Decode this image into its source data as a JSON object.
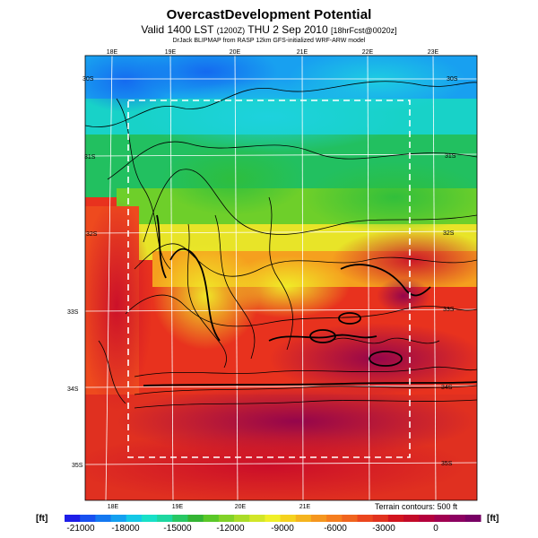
{
  "header": {
    "title": "OvercastDevelopment Potential",
    "subtitle_main": "Valid 1400 LST",
    "subtitle_utc": "(1200Z)",
    "subtitle_date": "THU 2 Sep 2010",
    "subtitle_fcst": "[18hrFcst@0020z]",
    "credit": "DrJack BLIPMAP from RASP 12km GFS-initialized WRF-ARW model"
  },
  "map": {
    "top_lon_ticks": [
      "18E",
      "19E",
      "20E",
      "21E",
      "22E",
      "23E"
    ],
    "bottom_lon_ticks": [
      "18E",
      "19E",
      "20E",
      "21E"
    ],
    "lat_ticks_left": [
      "30S",
      "31S",
      "32S",
      "33S",
      "34S",
      "35S"
    ],
    "lat_ticks_right": [
      "30S",
      "31S",
      "32S",
      "33S",
      "34S",
      "35S"
    ],
    "contour_note": "Terrain contours: 500 ft"
  },
  "colorbar": {
    "unit_left": "[ft]",
    "unit_right": "[ft]",
    "labels": [
      "-21000",
      "-18000",
      "-15000",
      "-12000",
      "-9000",
      "-6000",
      "-3000",
      "0"
    ],
    "colors": [
      "#1e1ee8",
      "#1850f0",
      "#1478f0",
      "#14a0f0",
      "#14c8e6",
      "#18e0c8",
      "#1ed7a0",
      "#28c864",
      "#34b434",
      "#5ac828",
      "#82d228",
      "#aadc28",
      "#d2e628",
      "#f0f028",
      "#f5d21e",
      "#f5b41e",
      "#f5961e",
      "#f57d1e",
      "#f0641e",
      "#eb461e",
      "#e1321e",
      "#d2141e",
      "#c30a28",
      "#b4003c",
      "#a00050",
      "#8c0060",
      "#780064"
    ]
  }
}
